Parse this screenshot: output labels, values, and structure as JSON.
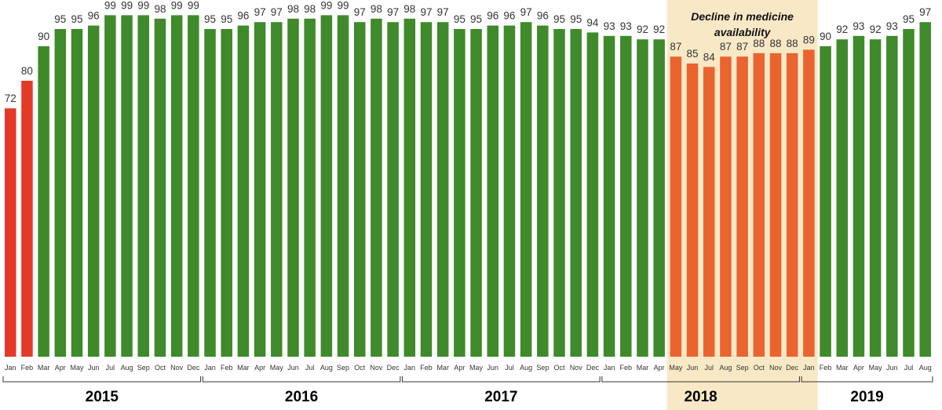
{
  "chart_data": {
    "type": "bar",
    "title": "",
    "xlabel": "",
    "ylabel": "",
    "ylim": [
      0,
      100
    ],
    "grid": false,
    "legend": "none",
    "categories": [
      "Jan",
      "Feb",
      "Mar",
      "Apr",
      "May",
      "Jun",
      "Jul",
      "Aug",
      "Sep",
      "Oct",
      "Nov",
      "Dec",
      "Jan",
      "Feb",
      "Mar",
      "Apr",
      "May",
      "Jun",
      "Jul",
      "Aug",
      "Sep",
      "Oct",
      "Nov",
      "Dec",
      "Jan",
      "Feb",
      "Mar",
      "Apr",
      "May",
      "Jun",
      "Jul",
      "Aug",
      "Sep",
      "Oct",
      "Nov",
      "Dec",
      "Jan",
      "Feb",
      "Mar",
      "Apr",
      "May",
      "Jun",
      "Jul",
      "Aug",
      "Sep",
      "Oct",
      "Nov",
      "Dec",
      "Jan",
      "Feb",
      "Mar",
      "Apr",
      "May",
      "Jun",
      "Jul",
      "Aug"
    ],
    "values": [
      72,
      80,
      90,
      95,
      95,
      96,
      99,
      99,
      99,
      98,
      99,
      99,
      95,
      95,
      96,
      97,
      97,
      98,
      98,
      99,
      99,
      97,
      98,
      97,
      98,
      97,
      97,
      95,
      95,
      96,
      96,
      97,
      96,
      95,
      95,
      94,
      93,
      93,
      92,
      92,
      87,
      85,
      84,
      87,
      87,
      88,
      88,
      88,
      89,
      90,
      92,
      93,
      92,
      93,
      95,
      97
    ],
    "bar_status": [
      "low",
      "low",
      "ok",
      "ok",
      "ok",
      "ok",
      "ok",
      "ok",
      "ok",
      "ok",
      "ok",
      "ok",
      "ok",
      "ok",
      "ok",
      "ok",
      "ok",
      "ok",
      "ok",
      "ok",
      "ok",
      "ok",
      "ok",
      "ok",
      "ok",
      "ok",
      "ok",
      "ok",
      "ok",
      "ok",
      "ok",
      "ok",
      "ok",
      "ok",
      "ok",
      "ok",
      "ok",
      "ok",
      "ok",
      "ok",
      "decline",
      "decline",
      "decline",
      "decline",
      "decline",
      "decline",
      "decline",
      "decline",
      "decline",
      "ok",
      "ok",
      "ok",
      "ok",
      "ok",
      "ok",
      "ok"
    ],
    "colors": {
      "ok": "#3f8a2a",
      "low": "#e23a26",
      "decline": "#ea6430",
      "highlight": "#f9e8c6"
    },
    "years": [
      {
        "label": "2015",
        "start": 0,
        "end": 11
      },
      {
        "label": "2016",
        "start": 12,
        "end": 23
      },
      {
        "label": "2017",
        "start": 24,
        "end": 35
      },
      {
        "label": "2018",
        "start": 36,
        "end": 47
      },
      {
        "label": "2019",
        "start": 48,
        "end": 55
      }
    ],
    "annotation": {
      "lines": [
        "Decline in medicine",
        "availability"
      ],
      "start": 40,
      "end": 48
    }
  }
}
